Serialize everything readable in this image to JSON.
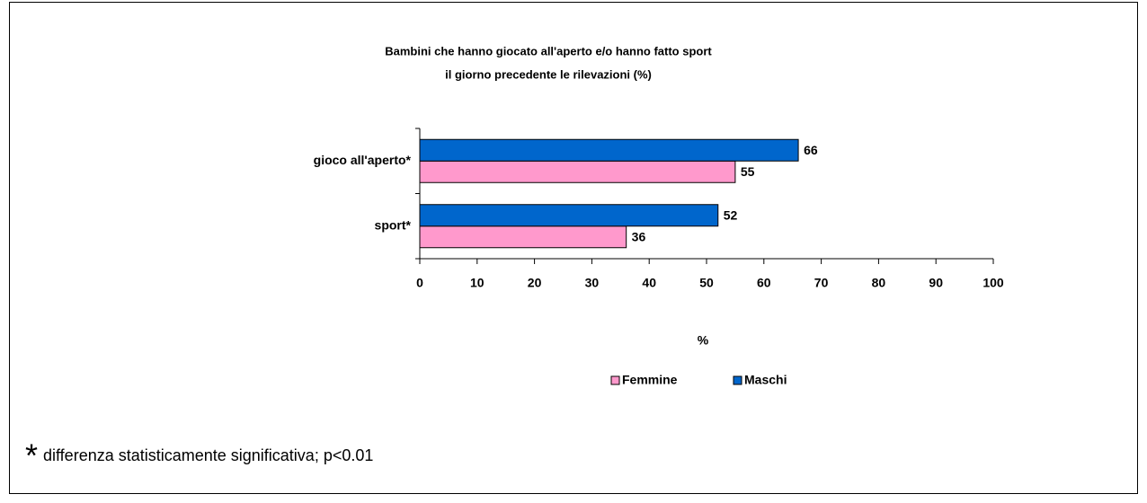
{
  "chart_data": {
    "type": "hbar",
    "title": [
      "Bambini che hanno giocato all'aperto e/o hanno fatto sport",
      "il giorno precedente le rilevazioni (%)"
    ],
    "categories": [
      "gioco all'aperto*",
      "sport*"
    ],
    "series": [
      {
        "name": "Femmine",
        "color": "#ff99cc",
        "values": [
          55,
          36
        ]
      },
      {
        "name": "Maschi",
        "color": "#0066cc",
        "values": [
          66,
          52
        ]
      }
    ],
    "xlim": [
      0,
      100
    ],
    "xticks": [
      0,
      10,
      20,
      30,
      40,
      50,
      60,
      70,
      80,
      90,
      100
    ],
    "xlabel": "%",
    "legend": "bottom",
    "footnote": {
      "mark": "*",
      "text": "differenza statisticamente significativa; p<0.01"
    }
  }
}
